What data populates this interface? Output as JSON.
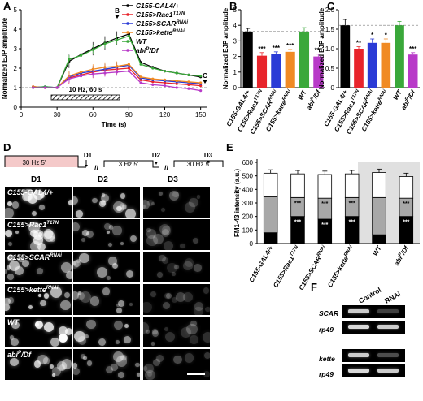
{
  "panels": {
    "A": "A",
    "B": "B",
    "C": "C",
    "D": "D",
    "E": "E",
    "F": "F"
  },
  "panel_a": {
    "ylabel": "Normalized EJP amplitude",
    "xlabel": "Time (s)",
    "stim_label": "10 Hz, 60 s",
    "marker_b": "B",
    "marker_c": "C",
    "legend": [
      "C155-GAL4/+",
      "C155>Rac1T17N",
      "C155>SCARRNAi",
      "C155>ketteRNAi",
      "WT",
      "abiP/Df"
    ],
    "colors": [
      "#000000",
      "#e8242b",
      "#2a3bd6",
      "#f08a24",
      "#3aa83a",
      "#b83ac8"
    ],
    "xticks": [
      "0",
      "30",
      "60",
      "90",
      "120",
      "150"
    ],
    "yticks": [
      "0",
      "1",
      "2",
      "3",
      "4",
      "5"
    ]
  },
  "chart_data": [
    {
      "type": "line",
      "panel": "A",
      "x": [
        10,
        20,
        30,
        40,
        50,
        60,
        70,
        80,
        90,
        100,
        110,
        120,
        130,
        140,
        150
      ],
      "series": [
        {
          "name": "C155-GAL4/+",
          "values": [
            1.05,
            1.0,
            1.0,
            2.35,
            2.7,
            3.0,
            3.3,
            3.55,
            3.75,
            2.3,
            2.05,
            1.85,
            1.75,
            1.65,
            1.55
          ]
        },
        {
          "name": "C155>Rac1T17N",
          "values": [
            1.05,
            1.0,
            1.0,
            1.5,
            1.65,
            1.8,
            1.9,
            1.95,
            2.0,
            1.4,
            1.3,
            1.25,
            1.2,
            1.15,
            1.1
          ]
        },
        {
          "name": "C155>SCARRNAi",
          "values": [
            1.0,
            1.05,
            1.0,
            1.55,
            1.75,
            1.85,
            1.95,
            2.05,
            2.15,
            1.5,
            1.4,
            1.35,
            1.3,
            1.25,
            1.2
          ]
        },
        {
          "name": "C155>ketteRNAi",
          "values": [
            1.05,
            1.0,
            1.0,
            1.6,
            1.8,
            1.95,
            2.05,
            2.1,
            2.2,
            1.55,
            1.45,
            1.4,
            1.35,
            1.3,
            1.25
          ]
        },
        {
          "name": "WT",
          "values": [
            1.0,
            1.05,
            1.0,
            2.45,
            2.65,
            2.95,
            3.25,
            3.45,
            3.65,
            2.2,
            2.0,
            1.85,
            1.75,
            1.65,
            1.6
          ]
        },
        {
          "name": "abiP/Df",
          "values": [
            1.0,
            1.0,
            1.0,
            1.45,
            1.6,
            1.7,
            1.75,
            1.8,
            1.85,
            1.25,
            1.15,
            1.1,
            1.0,
            0.95,
            0.85
          ]
        }
      ],
      "xlabel": "Time (s)",
      "ylabel": "Normalized EJP amplitude",
      "xlim": [
        0,
        155
      ],
      "ylim": [
        0,
        5
      ]
    },
    {
      "type": "bar",
      "panel": "B",
      "categories": [
        "C155-GAL4/+",
        "C155>Rac1T17N",
        "C155>SCARRNAi",
        "C155>ketteRNAi",
        "WT",
        "abiP/Df"
      ],
      "values": [
        3.6,
        2.05,
        2.15,
        2.3,
        3.6,
        2.0
      ],
      "errors": [
        0.2,
        0.2,
        0.15,
        0.15,
        0.25,
        0.15
      ],
      "significance": [
        "",
        "***",
        "***",
        "***",
        "",
        "***"
      ],
      "reference": 3.6,
      "ylabel": "Normalized EJP amplitude",
      "ylim": [
        0,
        5
      ],
      "yticks": [
        "0",
        "1",
        "2",
        "3",
        "4",
        "5"
      ]
    },
    {
      "type": "bar",
      "panel": "C",
      "categories": [
        "C155-GAL4/+",
        "C155>Rac1T17N",
        "C155>SCARRNAi",
        "C155>ketteRNAi",
        "WT",
        "abiP/Df"
      ],
      "values": [
        1.6,
        1.0,
        1.15,
        1.15,
        1.6,
        0.85
      ],
      "errors": [
        0.15,
        0.05,
        0.1,
        0.1,
        0.1,
        0.05
      ],
      "significance": [
        "",
        "**",
        "*",
        "*",
        "",
        "***"
      ],
      "reference": 1.6,
      "ylabel": "Normalized EJP amplitude",
      "ylim": [
        0,
        2
      ],
      "yticks": [
        "0",
        "0.5",
        "1.0",
        "1.5",
        "2.0"
      ]
    },
    {
      "type": "bar",
      "panel": "E",
      "stacked": true,
      "categories": [
        "C155-GAL4/+",
        "C155>Rac1T17N",
        "C155>SCARRNAi",
        "C155>ketteRNAi",
        "WT",
        "abiP/Df"
      ],
      "series": [
        {
          "values": [
            80,
            200,
            180,
            200,
            65,
            200
          ]
        },
        {
          "values": [
            265,
            140,
            155,
            140,
            275,
            135
          ]
        },
        {
          "values": [
            175,
            175,
            175,
            175,
            185,
            160
          ]
        }
      ],
      "significance": [
        "",
        "***",
        "***",
        "***",
        "",
        "***"
      ],
      "ylabel": "FM1-43 intensity (a.u.)",
      "ylim": [
        0,
        600
      ],
      "yticks": [
        "0",
        "100",
        "200",
        "300",
        "400",
        "500",
        "600"
      ]
    }
  ],
  "panel_d": {
    "protocol": [
      "30 Hz 5'",
      "3 Hz 5'",
      "30 Hz 5'"
    ],
    "markers": [
      "D1",
      "D2",
      "D3"
    ],
    "columns": [
      "D1",
      "D2",
      "D3"
    ],
    "rows": [
      "C155-GAL4/+",
      "C155>Rac1T17N",
      "C155>SCARRNAi",
      "C155>ketteRNAi",
      "WT",
      "abiP/Df"
    ]
  },
  "panel_f": {
    "columns": [
      "Control",
      "RNAi"
    ],
    "rows": [
      "SCAR",
      "rp49",
      "kette",
      "rp49"
    ]
  }
}
